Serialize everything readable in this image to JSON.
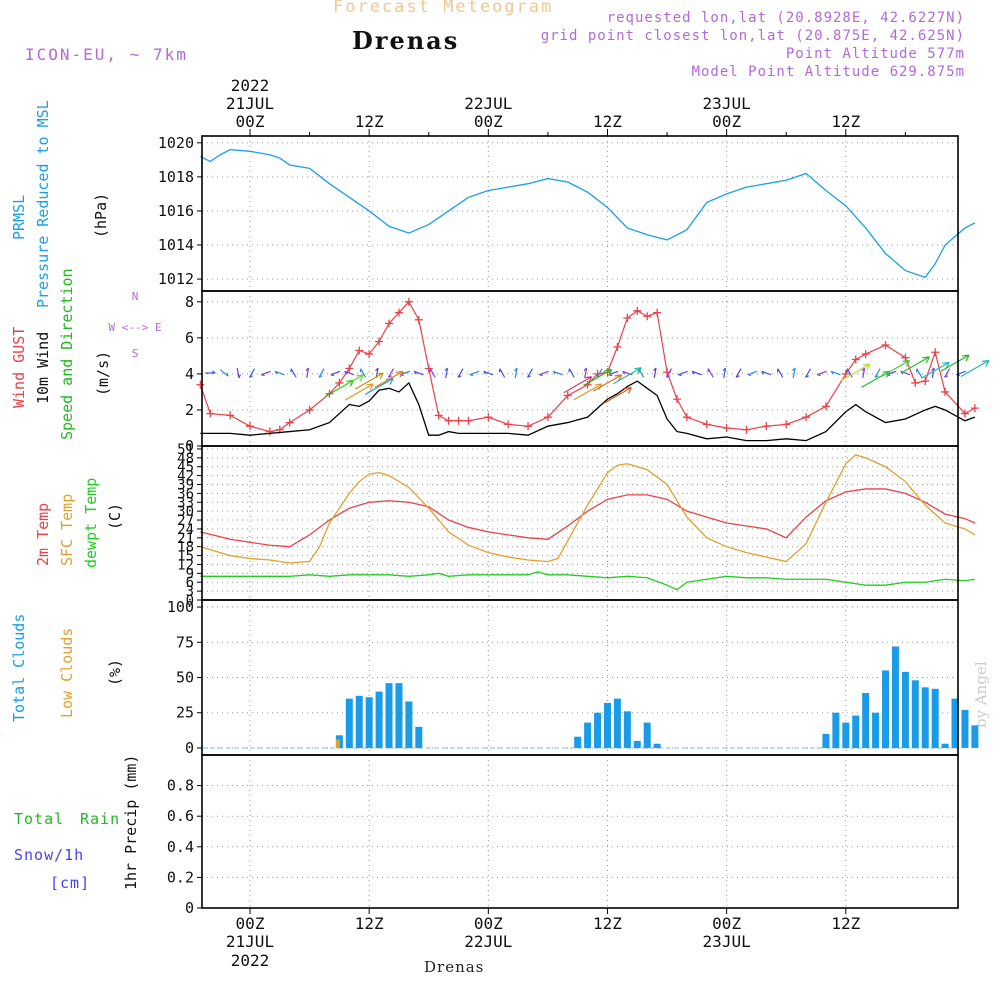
{
  "header": {
    "product": "Forecast Meteogram",
    "location": "Drenas",
    "model": "ICON-EU, ~ 7km",
    "requested": "requested lon,lat (20.8928E, 42.6227N)",
    "grid_point": "grid point closest lon,lat (20.875E, 42.625N)",
    "point_altitude": "Point Altitude 577m",
    "model_altitude": "Model Point Altitude 629.875m",
    "credit": "by Angel",
    "footer_location": "Drenas"
  },
  "colors": {
    "pressure": "#1aa0e6",
    "gust": "#e8424a",
    "wind": "#000000",
    "direction": "#22b822",
    "temp2m": "#e8424a",
    "sfc": "#e0a030",
    "dewpt": "#22cc22",
    "total_clouds": "#1a9be8",
    "low_clouds": "#e0a030",
    "rain": "#22b822",
    "snow": "#4444ee",
    "compass": "#b36ad8",
    "grid": "#999999"
  },
  "time_axis": {
    "hours_total": 78,
    "top_year": "2022",
    "top_ticks": [
      {
        "h": 0,
        "day": "21JUL",
        "hour": "00Z"
      },
      {
        "h": 12,
        "day": "",
        "hour": "12Z"
      },
      {
        "h": 24,
        "day": "22JUL",
        "hour": "00Z"
      },
      {
        "h": 36,
        "day": "",
        "hour": "12Z"
      },
      {
        "h": 48,
        "day": "23JUL",
        "hour": "00Z"
      },
      {
        "h": 60,
        "day": "",
        "hour": "12Z"
      }
    ],
    "bottom_ticks": [
      {
        "h": 0,
        "hour": "00Z",
        "day": "21JUL",
        "year": "2022"
      },
      {
        "h": 12,
        "hour": "12Z",
        "day": "",
        "year": ""
      },
      {
        "h": 24,
        "hour": "00Z",
        "day": "22JUL",
        "year": ""
      },
      {
        "h": 36,
        "hour": "12Z",
        "day": "",
        "year": ""
      },
      {
        "h": 48,
        "hour": "00Z",
        "day": "23JUL",
        "year": ""
      },
      {
        "h": 60,
        "hour": "12Z",
        "day": "",
        "year": ""
      }
    ]
  },
  "chart_data": [
    {
      "type": "line",
      "id": "pressure",
      "labels": [
        "PRMSL",
        "Pressure Reduced to MSL",
        "(hPa)"
      ],
      "ylim": [
        1011.3,
        1020.4
      ],
      "yticks": [
        1012,
        1014,
        1016,
        1018,
        1020
      ],
      "x": [
        -5,
        -4,
        -3,
        -2,
        0,
        2,
        3,
        4,
        6,
        8,
        10,
        12,
        14,
        16,
        18,
        20,
        22,
        24,
        26,
        28,
        30,
        32,
        34,
        36,
        38,
        40,
        42,
        44,
        46,
        48,
        50,
        52,
        54,
        56,
        58,
        60,
        62,
        64,
        66,
        68,
        69,
        70,
        72,
        73
      ],
      "values": [
        1019.2,
        1018.9,
        1019.3,
        1019.6,
        1019.5,
        1019.3,
        1019.1,
        1018.7,
        1018.5,
        1017.6,
        1016.8,
        1016,
        1015.1,
        1014.7,
        1015.2,
        1016,
        1016.8,
        1017.2,
        1017.4,
        1017.6,
        1017.9,
        1017.7,
        1017.1,
        1016.2,
        1015,
        1014.6,
        1014.3,
        1014.9,
        1016.5,
        1017,
        1017.4,
        1017.6,
        1017.8,
        1018.2,
        1017.2,
        1016.3,
        1015,
        1013.5,
        1012.5,
        1012.1,
        1012.9,
        1014,
        1015,
        1015.3
      ]
    },
    {
      "type": "line",
      "id": "wind",
      "labels": [
        "Wind GUST",
        "10m Wind",
        "Speed and Direction",
        "(m/s)"
      ],
      "compass": [
        "N",
        "W <--> E",
        "S"
      ],
      "ylim": [
        0,
        8.6
      ],
      "yticks": [
        0,
        2,
        4,
        6,
        8
      ],
      "series": [
        {
          "name": "Wind GUST",
          "x": [
            -5,
            -4,
            -2,
            0,
            2,
            3,
            4,
            6,
            8,
            9,
            10,
            11,
            12,
            13,
            14,
            15,
            16,
            17,
            18,
            19,
            20,
            21,
            22,
            24,
            26,
            28,
            30,
            32,
            34,
            35,
            36,
            37,
            38,
            39,
            40,
            41,
            42,
            43,
            44,
            46,
            48,
            50,
            52,
            54,
            56,
            58,
            60,
            61,
            62,
            64,
            66,
            67,
            68,
            69,
            70,
            72,
            73
          ],
          "values": [
            3.4,
            1.8,
            1.7,
            1.1,
            0.8,
            0.9,
            1.3,
            2.0,
            2.9,
            3.5,
            4.3,
            5.3,
            5.1,
            5.8,
            6.8,
            7.4,
            8.0,
            7.0,
            4.3,
            1.7,
            1.4,
            1.4,
            1.4,
            1.6,
            1.2,
            1.1,
            1.6,
            2.8,
            3.4,
            4.0,
            4.1,
            5.5,
            7.1,
            7.5,
            7.2,
            7.4,
            4.1,
            2.6,
            1.6,
            1.2,
            1.0,
            0.9,
            1.1,
            1.2,
            1.6,
            2.2,
            4.0,
            4.8,
            5.1,
            5.6,
            4.9,
            3.5,
            3.6,
            5.2,
            3.0,
            1.8,
            2.1
          ]
        },
        {
          "name": "10m Wind",
          "x": [
            -5,
            -2,
            0,
            2,
            4,
            6,
            8,
            10,
            11,
            12,
            13,
            14,
            15,
            16,
            17,
            18,
            19,
            20,
            21,
            22,
            24,
            26,
            28,
            30,
            32,
            34,
            35,
            36,
            37,
            38,
            39,
            40,
            41,
            42,
            43,
            44,
            46,
            48,
            50,
            52,
            54,
            56,
            58,
            60,
            61,
            62,
            64,
            66,
            68,
            69,
            70,
            72,
            73
          ],
          "values": [
            0.7,
            0.7,
            0.6,
            0.7,
            0.8,
            0.9,
            1.3,
            2.3,
            2.2,
            2.5,
            3.1,
            3.2,
            3.0,
            3.5,
            2.3,
            0.6,
            0.6,
            0.8,
            0.7,
            0.7,
            0.7,
            0.7,
            0.6,
            1.1,
            1.3,
            1.6,
            2.1,
            2.6,
            2.9,
            3.3,
            3.6,
            3.2,
            2.8,
            1.5,
            0.8,
            0.7,
            0.4,
            0.5,
            0.3,
            0.3,
            0.4,
            0.3,
            0.8,
            1.9,
            2.3,
            1.9,
            1.3,
            1.5,
            2.0,
            2.2,
            2.0,
            1.4,
            1.6
          ]
        }
      ]
    },
    {
      "type": "line",
      "id": "temperature",
      "labels": [
        "2m Temp",
        "SFC Temp",
        "dewpt Temp",
        "(C)"
      ],
      "ylim": [
        0,
        52
      ],
      "yticks": [
        0,
        3,
        6,
        9,
        12,
        15,
        18,
        21,
        24,
        27,
        30,
        33,
        36,
        39,
        42,
        45,
        48,
        51
      ],
      "series": [
        {
          "name": "2m Temp",
          "x": [
            -5,
            -2,
            0,
            2,
            4,
            6,
            8,
            10,
            12,
            14,
            16,
            18,
            20,
            22,
            24,
            26,
            28,
            30,
            32,
            34,
            36,
            38,
            40,
            42,
            44,
            46,
            48,
            50,
            52,
            54,
            56,
            58,
            60,
            62,
            64,
            66,
            68,
            70,
            72,
            73
          ],
          "values": [
            23,
            20.5,
            19.5,
            18.5,
            18,
            22,
            27,
            31,
            33,
            33.5,
            33,
            31.5,
            27,
            24.5,
            23,
            22,
            21,
            20.5,
            25,
            30,
            34,
            35.5,
            35.5,
            34,
            30,
            28,
            26,
            25,
            24,
            21,
            28,
            33.5,
            36.5,
            37.5,
            37.5,
            36,
            33,
            29,
            27.5,
            26
          ]
        },
        {
          "name": "SFC Temp",
          "x": [
            -5,
            -3,
            -2,
            0,
            2,
            4,
            6,
            7,
            8,
            10,
            11,
            12,
            13,
            14,
            16,
            18,
            20,
            22,
            24,
            26,
            28,
            30,
            31,
            32,
            34,
            36,
            37,
            38,
            40,
            42,
            44,
            46,
            48,
            50,
            52,
            54,
            56,
            58,
            60,
            61,
            62,
            64,
            66,
            68,
            70,
            72,
            73
          ],
          "values": [
            18,
            16,
            15,
            14,
            13.5,
            12.5,
            13,
            18,
            26,
            36,
            40,
            42.5,
            43,
            42,
            38,
            31,
            23,
            18.5,
            16,
            14.5,
            13.5,
            13,
            14,
            20,
            32,
            43,
            45.5,
            46,
            44,
            39,
            28,
            21,
            18,
            16,
            14.5,
            13,
            19,
            33,
            46,
            49,
            48,
            45,
            40,
            32,
            26,
            24,
            22
          ]
        },
        {
          "name": "dewpt Temp",
          "x": [
            -5,
            -2,
            0,
            2,
            4,
            6,
            8,
            10,
            12,
            14,
            16,
            18,
            19,
            20,
            22,
            24,
            26,
            28,
            29,
            30,
            32,
            34,
            36,
            38,
            40,
            42,
            43,
            44,
            46,
            48,
            50,
            52,
            54,
            56,
            58,
            60,
            62,
            64,
            66,
            68,
            70,
            72,
            73
          ],
          "values": [
            8,
            8,
            8,
            8,
            8,
            8.5,
            8,
            8.5,
            8.5,
            8.5,
            8,
            8.5,
            9,
            8,
            8.5,
            8.5,
            8.5,
            8.5,
            9.5,
            8.5,
            8.5,
            8,
            7.5,
            8,
            7.5,
            5,
            3.5,
            6,
            7,
            8,
            7.5,
            7.5,
            7,
            7,
            7,
            6,
            5,
            5,
            6,
            6,
            7,
            6.5,
            7
          ]
        }
      ]
    },
    {
      "type": "bar",
      "id": "clouds",
      "labels": [
        "Total Clouds",
        "Low Clouds",
        "(%)"
      ],
      "ylim": [
        -5,
        105
      ],
      "yticks": [
        0,
        25,
        50,
        75,
        100
      ],
      "series": [
        {
          "name": "Total Clouds",
          "x": [
            9,
            10,
            11,
            12,
            13,
            14,
            15,
            16,
            17,
            33,
            34,
            35,
            36,
            37,
            38,
            39,
            40,
            41,
            58,
            59,
            60,
            61,
            62,
            63,
            64,
            65,
            66,
            67,
            68,
            69,
            70,
            71,
            72,
            73
          ],
          "values": [
            9,
            35,
            37,
            36,
            40,
            46,
            46,
            33,
            15,
            8,
            18,
            25,
            32,
            35,
            26,
            5,
            18,
            3,
            10,
            25,
            18,
            23,
            39,
            25,
            55,
            72,
            54,
            48,
            43,
            42,
            3,
            35,
            27,
            16
          ]
        },
        {
          "name": "Low Clouds",
          "x": [
            9
          ],
          "values": [
            6
          ]
        }
      ]
    },
    {
      "type": "bar",
      "id": "precip",
      "labels": [
        "Total",
        "Rain",
        "Snow/1h",
        "[cm]",
        "1hr Precip (mm)"
      ],
      "ylim": [
        0,
        1.0
      ],
      "yticks": [
        0,
        0.2,
        0.4,
        0.6,
        0.8
      ],
      "series": [
        {
          "name": "Total Rain",
          "x": [],
          "values": []
        },
        {
          "name": "Snow/1h",
          "x": [],
          "values": []
        }
      ]
    }
  ]
}
